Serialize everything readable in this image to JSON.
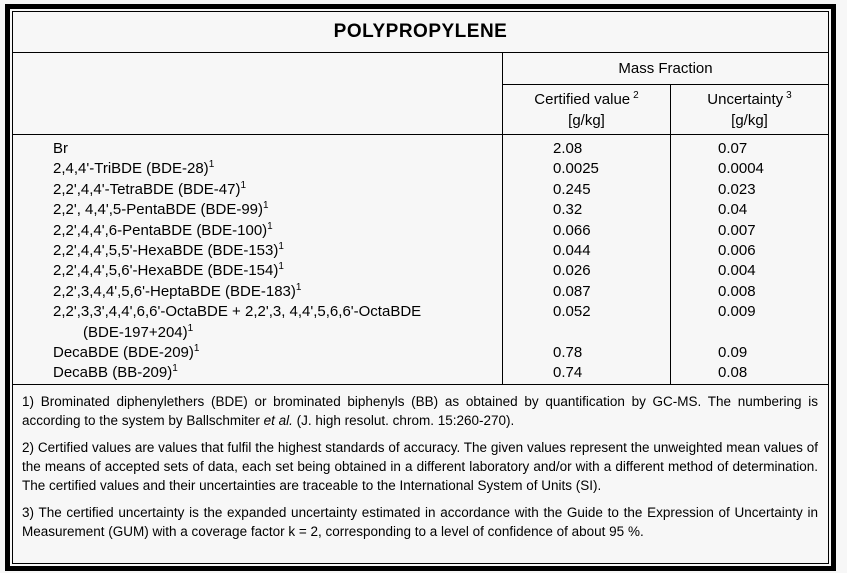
{
  "title": "POLYPROPYLENE",
  "table": {
    "group_header": "Mass Fraction",
    "columns": [
      {
        "label": "Certified value",
        "footnote_mark": "2",
        "unit": "[g/kg]"
      },
      {
        "label": "Uncertainty",
        "footnote_mark": "3",
        "unit": "[g/kg]"
      }
    ],
    "rows": [
      {
        "analyte": "Br",
        "certified": "2.08",
        "uncertainty": "0.07"
      },
      {
        "analyte": "2,4,4'-TriBDE (BDE-28)",
        "footnote_mark": "1",
        "certified": "0.0025",
        "uncertainty": "0.0004"
      },
      {
        "analyte": "2,2',4,4'-TetraBDE (BDE-47)",
        "footnote_mark": "1",
        "certified": "0.245",
        "uncertainty": "0.023"
      },
      {
        "analyte": "2,2', 4,4',5-PentaBDE (BDE-99)",
        "footnote_mark": "1",
        "certified": "0.32",
        "uncertainty": "0.04"
      },
      {
        "analyte": "2,2',4,4',6-PentaBDE (BDE-100)",
        "footnote_mark": "1",
        "certified": "0.066",
        "uncertainty": "0.007"
      },
      {
        "analyte": "2,2',4,4',5,5'-HexaBDE (BDE-153)",
        "footnote_mark": "1",
        "certified": "0.044",
        "uncertainty": "0.006"
      },
      {
        "analyte": "2,2',4,4',5,6'-HexaBDE (BDE-154)",
        "footnote_mark": "1",
        "certified": "0.026",
        "uncertainty": "0.004"
      },
      {
        "analyte": "2,2',3,4,4',5,6'-HeptaBDE (BDE-183)",
        "footnote_mark": "1",
        "certified": "0.087",
        "uncertainty": "0.008"
      },
      {
        "analyte": "2,2',3,3',4,4',6,6'-OctaBDE + 2,2',3, 4,4',5,6,6'-OctaBDE",
        "analyte_line2": "(BDE-197+204)",
        "line2_footnote_mark": "1",
        "certified": "0.052",
        "uncertainty": "0.009"
      },
      {
        "analyte": "DecaBDE (BDE-209)",
        "footnote_mark": "1",
        "certified": "0.78",
        "uncertainty": "0.09"
      },
      {
        "analyte": "DecaBB (BB-209)",
        "footnote_mark": "1",
        "certified": "0.74",
        "uncertainty": "0.08"
      }
    ]
  },
  "footnotes": [
    {
      "parts": [
        {
          "text": "1) Brominated diphenylethers (BDE) or brominated biphenyls (BB) as obtained by quantification by GC-MS. The numbering is according to the system by Ballschmiter "
        },
        {
          "text": "et al.",
          "italic": true
        },
        {
          "text": " (J. high resolut. chrom. 15:260-270)."
        }
      ]
    },
    {
      "parts": [
        {
          "text": "2) Certified values are values that fulfil the highest standards of accuracy. The given values represent the unweighted mean values of the means of accepted sets of data, each set being obtained in a different laboratory and/or with a different method of determination. The certified values and their uncertainties are traceable to the International System of Units (SI)."
        }
      ]
    },
    {
      "parts": [
        {
          "text": "3) The certified uncertainty is the expanded uncertainty estimated in accordance with the Guide to the Expression of Uncertainty in Measurement (GUM) with a coverage factor k = 2, corresponding to a level of confidence of about 95 %."
        }
      ]
    }
  ],
  "colors": {
    "border": "#000000",
    "background": "#f7f7f7",
    "text": "#000000"
  }
}
